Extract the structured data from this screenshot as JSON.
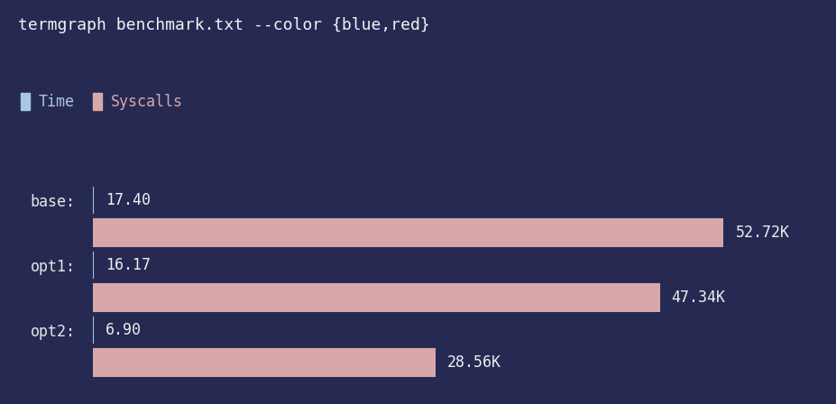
{
  "chart_data": {
    "type": "bar",
    "orientation": "horizontal",
    "title": "termgraph benchmark.txt --color {blue,red}",
    "categories": [
      "base:",
      "opt1:",
      "opt2:"
    ],
    "series": [
      {
        "name": "Time",
        "color": "#a9c7e3",
        "values": [
          17.4,
          16.17,
          6.9
        ],
        "value_labels": [
          "17.40",
          "16.17",
          "6.90"
        ]
      },
      {
        "name": "Syscalls",
        "color": "#d8a7aa",
        "values": [
          52720,
          47340,
          28560
        ],
        "value_labels": [
          "52.72K",
          "47.34K",
          "28.56K"
        ]
      }
    ],
    "legend": "upper left",
    "data_labels": true,
    "tick_labels": "y",
    "grid": false
  }
}
